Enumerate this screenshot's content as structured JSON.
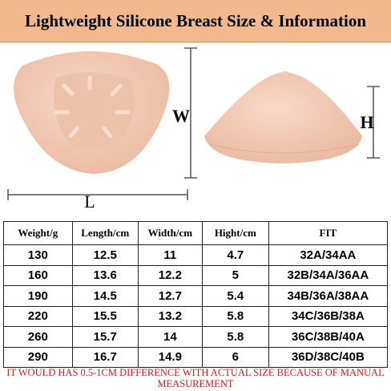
{
  "header": {
    "title": "Lightweight Silicone Breast Size & Information"
  },
  "diagram": {
    "width_label": "W",
    "length_label": "L",
    "height_label": "H"
  },
  "table": {
    "columns": [
      "Weight/g",
      "Length/cm",
      "Width/cm",
      "Hight/cm",
      "FIT"
    ],
    "rows": [
      [
        "130",
        "12.5",
        "11",
        "4.7",
        "32A/34AA"
      ],
      [
        "160",
        "13.6",
        "12.2",
        "5",
        "32B/34A/36AA"
      ],
      [
        "190",
        "14.5",
        "12.7",
        "5.4",
        "34B/36A/38AA"
      ],
      [
        "220",
        "15.5",
        "13.2",
        "5.8",
        "34C/36B/38A"
      ],
      [
        "260",
        "15.7",
        "14",
        "5.8",
        "36C/38B/40A"
      ],
      [
        "290",
        "16.7",
        "14.9",
        "6",
        "36D/38C/40B"
      ]
    ]
  },
  "footer": {
    "note": "IT WOULD HAS 0.5-1CM DIFFERENCE WITH ACTUAL SIZE BECAUSE OF MANUAL MEASUREMENT"
  }
}
